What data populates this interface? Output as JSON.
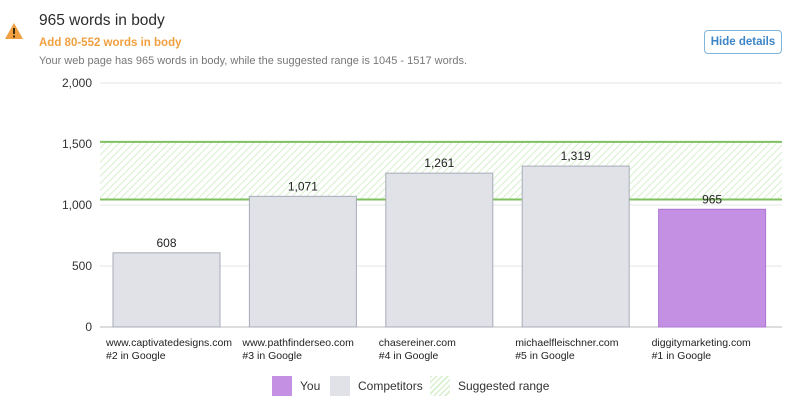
{
  "header": {
    "title": "965 words in body",
    "subtitle": "Add 80-552 words in body",
    "description": "Your web page has 965 words in body, while the suggested range is 1045 - 1517 words.",
    "hide_button": "Hide details",
    "icon": "warning-icon"
  },
  "colors": {
    "you": "#c390e3",
    "you_border": "#ad76d3",
    "competitor": "#e0e2e8",
    "competitor_border": "#a7acb8",
    "range_line": "#7fc15e",
    "range_hatch": "#d7efcd",
    "warning": "#f0a040",
    "accent": "#3d85c6"
  },
  "chart_data": {
    "type": "bar",
    "ylim": [
      0,
      2000
    ],
    "yticks": [
      0,
      500,
      1000,
      1500,
      2000
    ],
    "ytick_labels": [
      "0",
      "500",
      "1,000",
      "1,500",
      "2,000"
    ],
    "grid": true,
    "suggested_range": [
      1045,
      1517
    ],
    "bars": [
      {
        "domain": "www.captivatedesigns.com",
        "rank": "#2 in Google",
        "value": 608,
        "value_label": "608",
        "kind": "competitor"
      },
      {
        "domain": "www.pathfinderseo.com",
        "rank": "#3 in Google",
        "value": 1071,
        "value_label": "1,071",
        "kind": "competitor"
      },
      {
        "domain": "chasereiner.com",
        "rank": "#4 in Google",
        "value": 1261,
        "value_label": "1,261",
        "kind": "competitor"
      },
      {
        "domain": "michaelfleischner.com",
        "rank": "#5 in Google",
        "value": 1319,
        "value_label": "1,319",
        "kind": "competitor"
      },
      {
        "domain": "diggitymarketing.com",
        "rank": "#1 in Google",
        "value": 965,
        "value_label": "965",
        "kind": "you"
      }
    ],
    "legend": {
      "placement": "bottom",
      "items": [
        {
          "label": "You",
          "kind": "you"
        },
        {
          "label": "Competitors",
          "kind": "competitor"
        },
        {
          "label": "Suggested range",
          "kind": "range"
        }
      ]
    }
  }
}
